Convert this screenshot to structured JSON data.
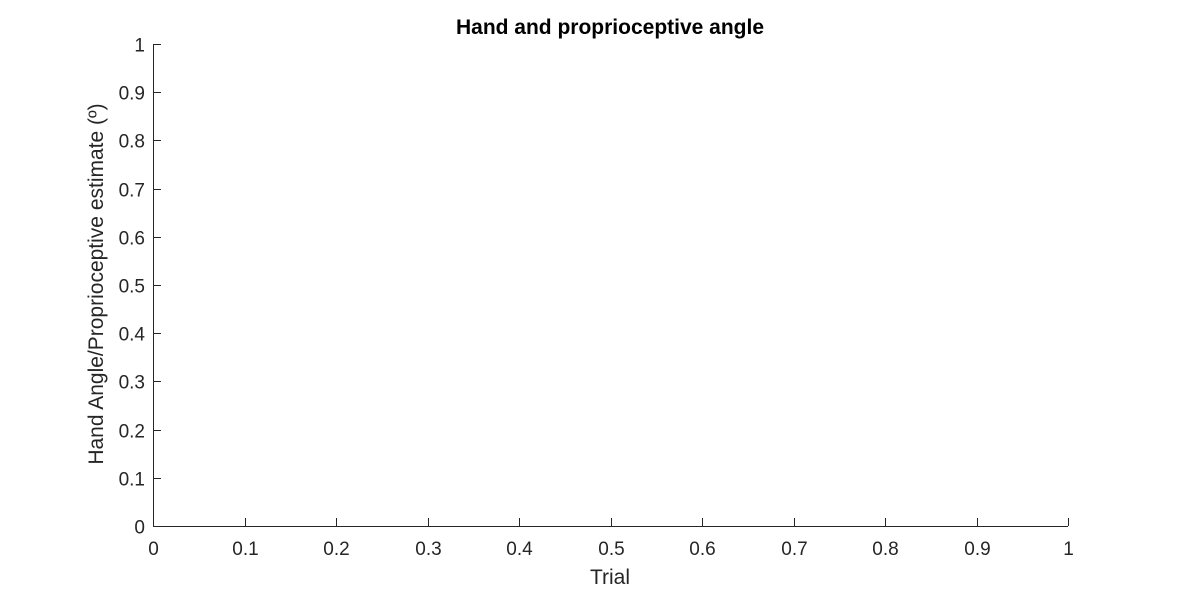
{
  "chart_data": {
    "type": "line",
    "title": "Hand and proprioceptive angle",
    "xlabel": "Trial",
    "ylabel": "Hand Angle/Proprioceptive estimate (º)",
    "xlim": [
      0,
      1
    ],
    "ylim": [
      0,
      1
    ],
    "xticks": [
      "0",
      "0.1",
      "0.2",
      "0.3",
      "0.4",
      "0.5",
      "0.6",
      "0.7",
      "0.8",
      "0.9",
      "1"
    ],
    "yticks": [
      "0",
      "0.1",
      "0.2",
      "0.3",
      "0.4",
      "0.5",
      "0.6",
      "0.7",
      "0.8",
      "0.9",
      "1"
    ],
    "grid": false,
    "series": [],
    "colors": {
      "axis": "#262626",
      "title": "#000000",
      "background": "#ffffff"
    }
  }
}
